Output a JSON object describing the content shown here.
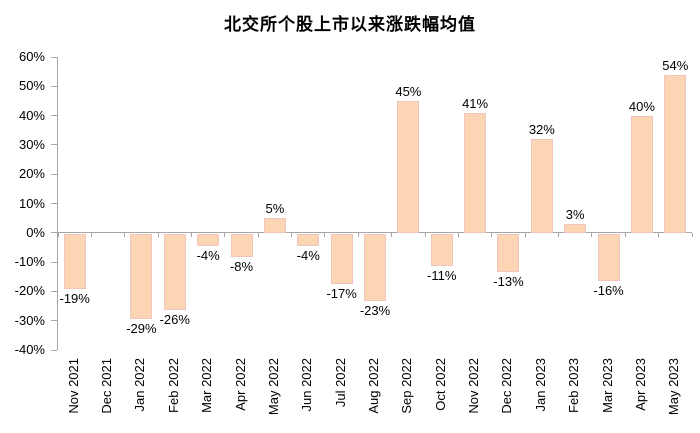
{
  "chart_data": {
    "type": "bar",
    "title": "北交所个股上市以来涨跌幅均值",
    "categories": [
      "Nov 2021",
      "Dec 2021",
      "Jan 2022",
      "Feb 2022",
      "Mar 2022",
      "Apr 2022",
      "May 2022",
      "Jun 2022",
      "Jul 2022",
      "Aug 2022",
      "Sep 2022",
      "Oct 2022",
      "Nov 2022",
      "Dec 2022",
      "Jan 2023",
      "Feb 2023",
      "Mar 2023",
      "Apr 2023",
      "May 2023"
    ],
    "values": [
      -19,
      null,
      -29,
      -26,
      -4,
      -8,
      5,
      -4,
      -17,
      -23,
      45,
      -11,
      41,
      -13,
      32,
      3,
      -16,
      40,
      54
    ],
    "bar_labels": [
      "-19%",
      "",
      "-29%",
      "-26%",
      "-4%",
      "-8%",
      "5%",
      "-4%",
      "-17%",
      "-23%",
      "45%",
      "-11%",
      "41%",
      "-13%",
      "32%",
      "3%",
      "-16%",
      "40%",
      "54%"
    ],
    "xlabel": "",
    "ylabel": "",
    "ylim": [
      -40,
      60
    ],
    "ytick_step": 10,
    "ytick_labels": [
      "60%",
      "50%",
      "40%",
      "30%",
      "20%",
      "10%",
      "0%",
      "-10%",
      "-20%",
      "-30%",
      "-40%"
    ],
    "grid": false,
    "legend_position": "none",
    "colors": {
      "bar_fill": "#FCD5B4",
      "bar_border": "#F0C5BC",
      "axis": "#A6A6A6",
      "text": "#000000",
      "background": "#FFFFFF"
    }
  }
}
